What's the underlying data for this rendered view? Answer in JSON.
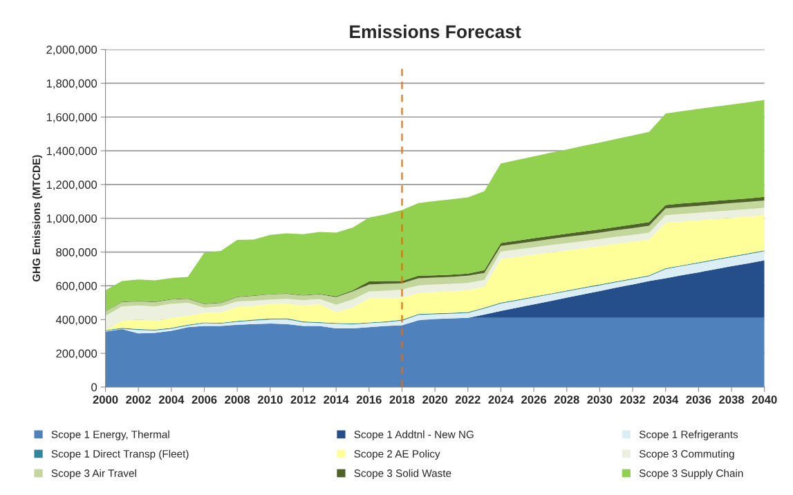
{
  "chart_data": {
    "type": "area",
    "stacked": true,
    "title": "Emissions Forecast",
    "ylabel": "GHG Emissions (MTCDE)",
    "x": [
      2000,
      2001,
      2002,
      2003,
      2004,
      2005,
      2006,
      2007,
      2008,
      2009,
      2010,
      2011,
      2012,
      2013,
      2014,
      2015,
      2016,
      2017,
      2018,
      2019,
      2020,
      2021,
      2022,
      2023,
      2024,
      2025,
      2026,
      2027,
      2028,
      2029,
      2030,
      2031,
      2032,
      2033,
      2034,
      2035,
      2036,
      2037,
      2038,
      2039,
      2040
    ],
    "series": [
      {
        "name": "Scope 1 Energy, Thermal",
        "color": "#4f81bd",
        "values": [
          328000,
          344000,
          318000,
          321000,
          333000,
          355000,
          362000,
          362000,
          369000,
          373000,
          376000,
          373000,
          362000,
          362000,
          348000,
          348000,
          355000,
          362000,
          366000,
          396000,
          403000,
          407000,
          410000,
          410000,
          410000,
          410000,
          410000,
          410000,
          410000,
          410000,
          410000,
          410000,
          410000,
          410000,
          410000,
          410000,
          410000,
          410000,
          410000,
          410000,
          410000
        ]
      },
      {
        "name": "Scope 1 Addtnl - New NG",
        "color": "#254f8a",
        "values": [
          0,
          0,
          0,
          0,
          0,
          0,
          0,
          0,
          0,
          0,
          0,
          0,
          0,
          0,
          0,
          0,
          0,
          0,
          0,
          0,
          0,
          0,
          0,
          20000,
          41000,
          61000,
          80000,
          100000,
          120000,
          139000,
          159000,
          179000,
          198000,
          218000,
          235000,
          253000,
          270000,
          288000,
          306000,
          323000,
          341000
        ]
      },
      {
        "name": "Scope 1 Refrigerants",
        "color": "#dbeef4",
        "values": [
          4000,
          2000,
          21000,
          15000,
          13000,
          9000,
          16000,
          14000,
          18000,
          21000,
          25000,
          29000,
          22000,
          18000,
          27000,
          23000,
          23000,
          22000,
          28000,
          32000,
          29000,
          28000,
          29000,
          36000,
          44000,
          42000,
          41000,
          39000,
          37000,
          36000,
          34000,
          32000,
          31000,
          29000,
          54000,
          54000,
          54000,
          54000,
          54000,
          54000,
          54000
        ]
      },
      {
        "name": "Scope 1 Direct Transp (Fleet)",
        "color": "#31859c",
        "values": [
          5000,
          5000,
          5000,
          5000,
          5000,
          5000,
          5000,
          5000,
          5000,
          5000,
          5000,
          5000,
          5000,
          5000,
          5000,
          5000,
          5000,
          5000,
          5000,
          5000,
          5000,
          5000,
          5000,
          5000,
          5000,
          5000,
          5000,
          5000,
          5000,
          5000,
          5000,
          5000,
          5000,
          5000,
          5000,
          5000,
          5000,
          5000,
          5000,
          5000,
          5000
        ]
      },
      {
        "name": "Scope 2 AE Policy",
        "color": "#ffff99",
        "values": [
          0,
          41000,
          56000,
          51000,
          59000,
          52000,
          58000,
          60000,
          83000,
          82000,
          86000,
          87000,
          93000,
          107000,
          64000,
          95000,
          143000,
          137000,
          131000,
          124000,
          126000,
          128000,
          130000,
          123000,
          258000,
          253000,
          248000,
          243000,
          238000,
          232000,
          227000,
          222000,
          217000,
          212000,
          269000,
          259000,
          249000,
          239000,
          228000,
          218000,
          208000
        ]
      },
      {
        "name": "Scope 3 Commuting",
        "color": "#ebf1de",
        "values": [
          86000,
          86000,
          84000,
          86000,
          84000,
          78000,
          30000,
          37000,
          33000,
          31000,
          27000,
          29000,
          33000,
          30000,
          44000,
          48000,
          41000,
          45000,
          47000,
          47000,
          45000,
          44000,
          43000,
          41000,
          45000,
          45000,
          44000,
          44000,
          43000,
          43000,
          42000,
          42000,
          41000,
          41000,
          45000,
          45000,
          45000,
          44000,
          44000,
          44000,
          44000
        ]
      },
      {
        "name": "Scope 3 Air Travel",
        "color": "#c3d69b",
        "values": [
          25000,
          25000,
          24000,
          25000,
          25000,
          24000,
          21000,
          20000,
          25000,
          28000,
          30000,
          30000,
          27000,
          28000,
          45000,
          48000,
          41000,
          41000,
          38000,
          41000,
          41000,
          41000,
          43000,
          41000,
          33000,
          34000,
          35000,
          36000,
          37000,
          37000,
          38000,
          39000,
          40000,
          41000,
          40000,
          41000,
          41000,
          42000,
          43000,
          43000,
          44000
        ]
      },
      {
        "name": "Scope 3 Solid Waste",
        "color": "#4f6228",
        "values": [
          2000,
          3000,
          3000,
          3000,
          3000,
          3000,
          3000,
          3000,
          3000,
          3000,
          3000,
          3000,
          3000,
          3000,
          5000,
          6000,
          18000,
          16000,
          13000,
          15000,
          13000,
          13000,
          12000,
          17000,
          18000,
          18000,
          19000,
          19000,
          19000,
          20000,
          20000,
          20000,
          21000,
          21000,
          21000,
          21000,
          21000,
          21000,
          21000,
          21000,
          21000
        ]
      },
      {
        "name": "Scope 3 Supply Chain",
        "color": "#92d050",
        "values": [
          124000,
          122000,
          127000,
          126000,
          124000,
          127000,
          301000,
          305000,
          336000,
          331000,
          350000,
          355000,
          361000,
          366000,
          377000,
          372000,
          378000,
          396000,
          421000,
          430000,
          440000,
          447000,
          452000,
          468000,
          471000,
          478000,
          485000,
          492000,
          499000,
          507000,
          514000,
          521000,
          528000,
          535000,
          542000,
          547000,
          553000,
          558000,
          563000,
          569000,
          574000
        ]
      }
    ],
    "xlim": [
      2000,
      2040
    ],
    "xticks": [
      2000,
      2002,
      2004,
      2006,
      2008,
      2010,
      2012,
      2014,
      2016,
      2018,
      2020,
      2022,
      2024,
      2026,
      2028,
      2030,
      2032,
      2034,
      2036,
      2038,
      2040
    ],
    "ylim": [
      0,
      2000000
    ],
    "yticks": [
      0,
      {
        "value": 200000,
        "label": "200,000"
      },
      {
        "value": 400000,
        "label": "400,000"
      },
      {
        "value": 600000,
        "label": "600,000"
      },
      {
        "value": 800000,
        "label": "800,000"
      },
      {
        "value": 1000000,
        "label": "1,000,000"
      },
      {
        "value": 1200000,
        "label": "1,200,000"
      },
      {
        "value": 1400000,
        "label": "1,400,000"
      },
      {
        "value": 1600000,
        "label": "1,600,000"
      },
      {
        "value": 1800000,
        "label": "1,800,000"
      },
      {
        "value": 2000000,
        "label": "2,000,000"
      }
    ],
    "grid": "y",
    "legend": "bottom",
    "ref_lines": [
      {
        "axis": "x",
        "value": 2018,
        "color": "#e36c09",
        "line_style": "dashed"
      }
    ]
  }
}
